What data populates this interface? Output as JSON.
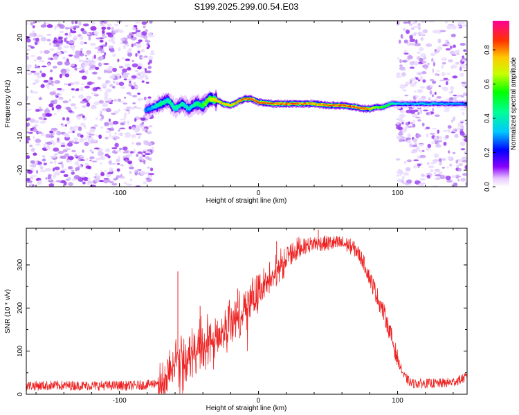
{
  "title": "S199.2025.299.00.54.E03",
  "colors": {
    "snr_line": "#ee2222",
    "spectrogram_dots": "#9a3df0"
  },
  "chart_data": [
    {
      "type": "heatmap",
      "name": "spectrogram",
      "xlabel": "Height of straight line (km)",
      "ylabel": "Frequency (Hz)",
      "xlim": [
        -167,
        150
      ],
      "ylim": [
        -25,
        25
      ],
      "xticks": [
        -100,
        0,
        100
      ],
      "yticks": [
        -20,
        -10,
        0,
        10,
        20
      ],
      "colorbar": {
        "label": "Normalized spectral amplitude",
        "range": [
          0,
          0.97
        ],
        "ticks": [
          "0.0",
          "0.2",
          "0.4",
          "0.6",
          "0.8"
        ],
        "tick_values": [
          0.0,
          0.2,
          0.4,
          0.6,
          0.8
        ]
      },
      "noise_regions_km": [
        [
          -167,
          -76
        ],
        [
          100,
          150
        ]
      ],
      "signal_track": {
        "x_km": [
          -81,
          -75,
          -70,
          -65,
          -60,
          -55,
          -50,
          -45,
          -40,
          -35,
          -30,
          -25,
          -20,
          -15,
          -10,
          -5,
          0,
          10,
          20,
          30,
          40,
          50,
          60,
          70,
          75,
          80,
          85,
          90,
          95,
          100,
          110,
          120,
          130,
          140,
          150
        ],
        "freq_hz": [
          -2,
          -1,
          0,
          1,
          -1.5,
          0,
          -1.5,
          0,
          -0.5,
          1.5,
          1,
          0,
          -0.5,
          0.5,
          1.5,
          1.5,
          0.5,
          0,
          0,
          0,
          0,
          -0.5,
          -0.5,
          -1,
          -1.5,
          -1.5,
          -1,
          -1,
          0,
          0,
          0,
          0,
          0,
          0,
          0
        ],
        "amplitude": [
          0.3,
          0.4,
          0.5,
          0.45,
          0.5,
          0.45,
          0.4,
          0.5,
          0.6,
          0.75,
          0.8,
          0.85,
          0.8,
          0.85,
          0.9,
          0.9,
          0.9,
          0.92,
          0.92,
          0.9,
          0.85,
          0.9,
          0.92,
          0.92,
          0.9,
          0.85,
          0.7,
          0.6,
          0.55,
          0.4,
          0.35,
          0.4,
          0.35,
          0.35,
          0.3
        ]
      }
    },
    {
      "type": "line",
      "name": "snr",
      "xlabel": "Height of straight line (km)",
      "ylabel": "SNR (10 * v/v)",
      "xlim": [
        -167,
        150
      ],
      "ylim": [
        0,
        385
      ],
      "xticks": [
        -100,
        0,
        100
      ],
      "yticks": [
        0,
        100,
        200,
        300
      ],
      "series": [
        {
          "name": "SNR",
          "x": [
            -167,
            -150,
            -130,
            -110,
            -90,
            -80,
            -75,
            -72,
            -70,
            -65,
            -60,
            -58,
            -55,
            -50,
            -45,
            -40,
            -35,
            -30,
            -25,
            -20,
            -15,
            -10,
            -5,
            0,
            5,
            10,
            15,
            20,
            25,
            30,
            35,
            40,
            45,
            50,
            55,
            60,
            65,
            70,
            75,
            80,
            85,
            90,
            95,
            100,
            105,
            110,
            120,
            130,
            140,
            150
          ],
          "y": [
            20,
            20,
            20,
            20,
            20,
            22,
            25,
            30,
            40,
            70,
            90,
            100,
            95,
            100,
            110,
            120,
            130,
            150,
            170,
            180,
            200,
            210,
            230,
            250,
            270,
            290,
            310,
            320,
            330,
            340,
            345,
            350,
            350,
            350,
            350,
            350,
            345,
            335,
            310,
            270,
            230,
            190,
            140,
            80,
            40,
            25,
            25,
            25,
            28,
            40
          ],
          "spikes": [
            {
              "x": -58,
              "y": 285
            },
            {
              "x": -42,
              "y": 205
            },
            {
              "x": -15,
              "y": 245
            },
            {
              "x": 13,
              "y": 355
            },
            {
              "x": 43,
              "y": 382
            }
          ]
        }
      ]
    }
  ]
}
